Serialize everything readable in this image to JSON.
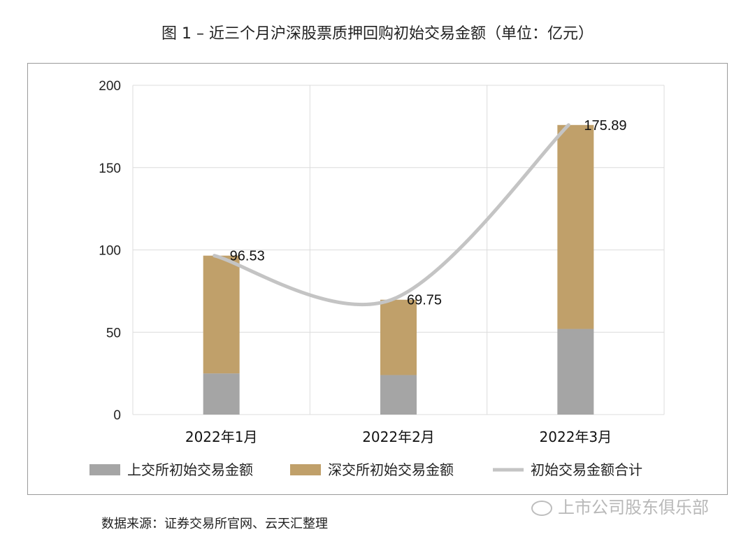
{
  "title": "图 1 –  近三个月沪深股票质押回购初始交易金额（单位：亿元）",
  "source": "数据来源：证券交易所官网、云天汇整理",
  "watermark": "上市公司股东俱乐部",
  "chart_data": {
    "type": "bar",
    "stacked": true,
    "categories": [
      "2022年1月",
      "2022年2月",
      "2022年3月"
    ],
    "series": [
      {
        "name": "上交所初始交易金额",
        "type": "bar",
        "color": "#a5a5a5",
        "values": [
          25,
          24,
          52
        ]
      },
      {
        "name": "深交所初始交易金额",
        "type": "bar",
        "color": "#c0a06a",
        "values": [
          71.53,
          45.75,
          123.89
        ]
      },
      {
        "name": "初始交易金额合计",
        "type": "line",
        "color": "#c4c4c4",
        "values": [
          96.53,
          69.75,
          175.89
        ]
      }
    ],
    "data_labels": [
      "96.53",
      "69.75",
      "175.89"
    ],
    "yticks": [
      "0",
      "50",
      "100",
      "150",
      "200"
    ],
    "ylim": [
      0,
      200
    ],
    "grid": true,
    "legend": "bottom"
  }
}
